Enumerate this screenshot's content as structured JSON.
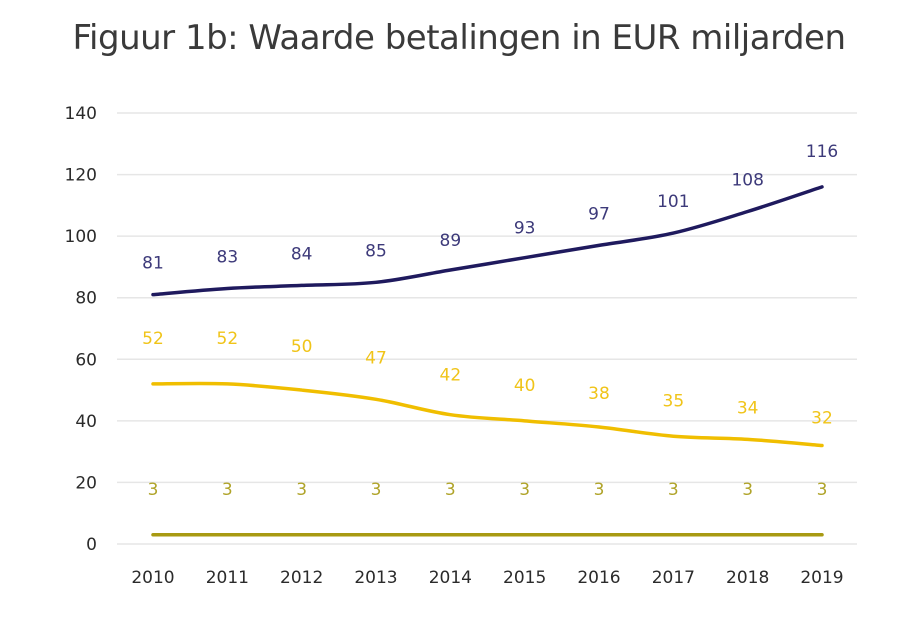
{
  "chart_data": {
    "type": "line",
    "title": "Figuur 1b: Waarde betalingen in EUR miljarden",
    "xlabel": "",
    "ylabel": "",
    "categories": [
      "2010",
      "2011",
      "2012",
      "2013",
      "2014",
      "2015",
      "2016",
      "2017",
      "2018",
      "2019"
    ],
    "ylim": [
      0,
      140
    ],
    "yticks": [
      0,
      20,
      40,
      60,
      80,
      100,
      120,
      140
    ],
    "grid": true,
    "legend": "none",
    "series": [
      {
        "name": "series-1",
        "color": "#1f1a5e",
        "label_color": "#3d3a7a",
        "values": [
          81,
          83,
          84,
          85,
          89,
          93,
          97,
          101,
          108,
          116
        ]
      },
      {
        "name": "series-2",
        "color": "#f0be00",
        "label_color": "#f0c419",
        "values": [
          52,
          52,
          50,
          47,
          42,
          40,
          38,
          35,
          34,
          32
        ]
      },
      {
        "name": "series-3",
        "color": "#a89a12",
        "label_color": "#b0a42a",
        "values": [
          3,
          3,
          3,
          3,
          3,
          3,
          3,
          3,
          3,
          3
        ]
      }
    ],
    "gridline_color": "#e6e6e6"
  }
}
